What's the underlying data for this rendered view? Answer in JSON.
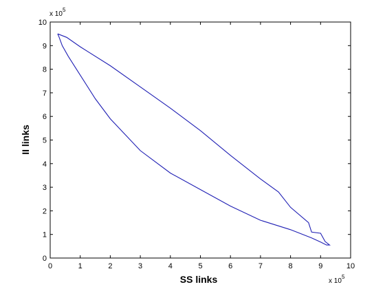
{
  "chart_data": {
    "type": "line",
    "title": "",
    "xlabel": "SS links",
    "ylabel": "II links",
    "x_multiplier_label": "x 10",
    "x_multiplier_exp": "5",
    "y_multiplier_label": "x 10",
    "y_multiplier_exp": "5",
    "xlim": [
      0,
      10
    ],
    "ylim": [
      0,
      10
    ],
    "x_ticks": [
      "0",
      "1",
      "2",
      "3",
      "4",
      "5",
      "6",
      "7",
      "8",
      "9",
      "10"
    ],
    "y_ticks": [
      "0",
      "1",
      "2",
      "3",
      "4",
      "5",
      "6",
      "7",
      "8",
      "9",
      "10"
    ],
    "grid": false,
    "line_color": "#1f1fb4",
    "series": [
      {
        "x": [
          0.25,
          0.55,
          1.0,
          2.0,
          3.0,
          4.0,
          5.0,
          6.0,
          7.0,
          7.6,
          8.0,
          8.6,
          8.7,
          9.0,
          9.15,
          9.3,
          9.2,
          9.0,
          8.7,
          8.0,
          7.0,
          6.0,
          5.0,
          4.0,
          3.0,
          2.0,
          1.5,
          1.0,
          0.6,
          0.4,
          0.3,
          0.25
        ],
        "y": [
          9.5,
          9.35,
          8.95,
          8.15,
          7.25,
          6.35,
          5.4,
          4.35,
          3.35,
          2.8,
          2.15,
          1.5,
          1.1,
          1.05,
          0.7,
          0.55,
          0.55,
          0.68,
          0.85,
          1.2,
          1.6,
          2.2,
          2.9,
          3.6,
          4.55,
          5.9,
          6.75,
          7.75,
          8.55,
          9.0,
          9.35,
          9.5
        ]
      }
    ]
  }
}
